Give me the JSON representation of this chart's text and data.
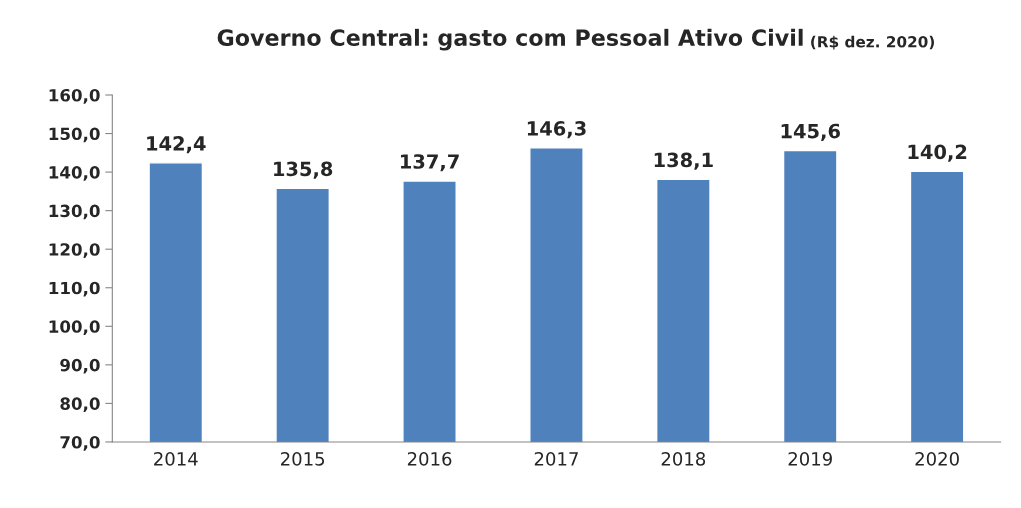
{
  "chart_data": {
    "type": "bar",
    "title": "Governo Central: gasto com Pessoal Ativo Civil",
    "subtitle": "(R$ dez. 2020)",
    "categories": [
      "2014",
      "2015",
      "2016",
      "2017",
      "2018",
      "2019",
      "2020"
    ],
    "values": [
      142.4,
      135.8,
      137.7,
      146.3,
      138.1,
      145.6,
      140.2
    ],
    "value_labels": [
      "142,4",
      "135,8",
      "137,7",
      "146,3",
      "138,1",
      "145,6",
      "140,2"
    ],
    "color": "#4f81bd",
    "ylim": [
      70,
      160
    ],
    "yticks": [
      {
        "value": 70,
        "label": "70,0"
      },
      {
        "value": 80,
        "label": "80,0"
      },
      {
        "value": 90,
        "label": "90,0"
      },
      {
        "value": 100,
        "label": "100,0"
      },
      {
        "value": 110,
        "label": "110,0"
      },
      {
        "value": 120,
        "label": "120,0"
      },
      {
        "value": 130,
        "label": "130,0"
      },
      {
        "value": 140,
        "label": "140,0"
      },
      {
        "value": 150,
        "label": "150,0"
      },
      {
        "value": 160,
        "label": "160,0"
      }
    ],
    "grid": false,
    "legend": false
  }
}
